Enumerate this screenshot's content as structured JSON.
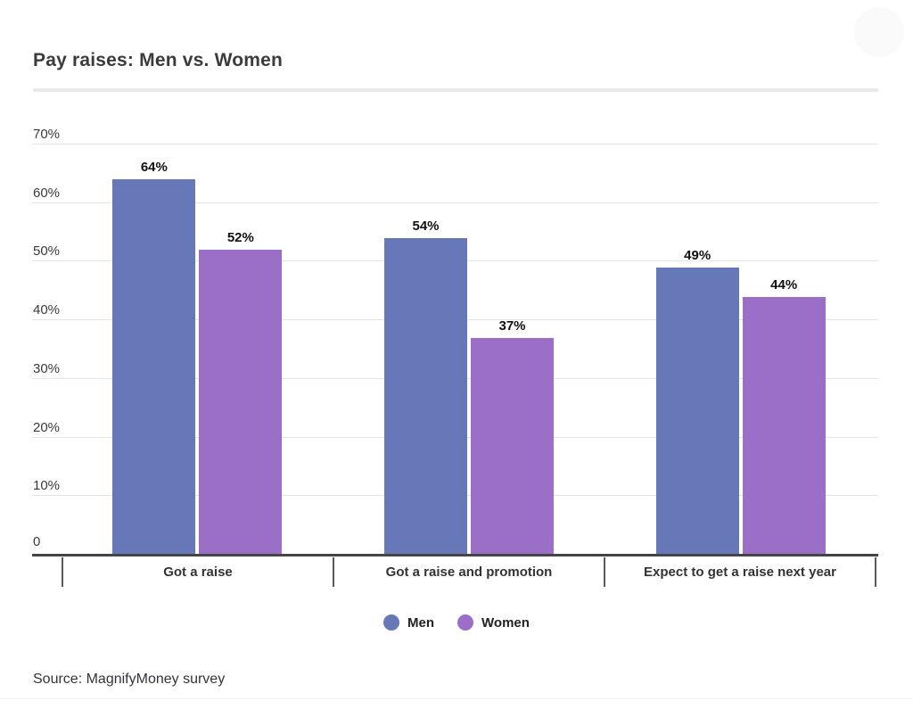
{
  "title": "Pay raises: Men vs. Women",
  "source": "Source: MagnifyMoney survey",
  "chart_data": {
    "type": "bar",
    "title": "Pay raises: Men vs. Women",
    "categories": [
      "Got a raise",
      "Got a raise and promotion",
      "Expect to get a raise next year"
    ],
    "series": [
      {
        "name": "Men",
        "color": "#6778b8",
        "values": [
          64,
          54,
          49
        ]
      },
      {
        "name": "Women",
        "color": "#9b6fc8",
        "values": [
          52,
          37,
          44
        ]
      }
    ],
    "value_suffix": "%",
    "y_ticks": [
      0,
      10,
      20,
      30,
      40,
      50,
      60,
      70
    ],
    "y_tick_labels": [
      "0",
      "10%",
      "20%",
      "30%",
      "40%",
      "50%",
      "60%",
      "70%"
    ],
    "ylim": [
      0,
      70
    ],
    "xlabel": "",
    "ylabel": "",
    "grid": true,
    "legend_position": "bottom",
    "annotations": [
      "64%",
      "52%",
      "54%",
      "37%",
      "49%",
      "44%"
    ],
    "source_note": "Source: MagnifyMoney survey"
  },
  "colors": {
    "men": "#6778b8",
    "women": "#9b6fc8",
    "grid": "#e4e4e4",
    "axis": "#454545",
    "title_text": "#3b3b3b",
    "divider": "#e9e9e9"
  }
}
